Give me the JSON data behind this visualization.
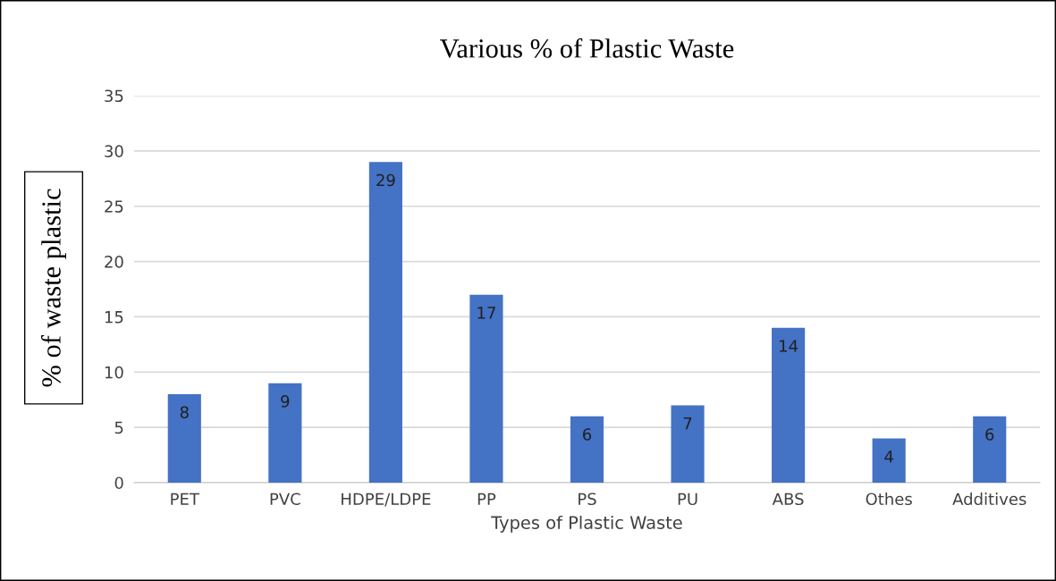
{
  "chart_data": {
    "type": "bar",
    "title": "Various % of Plastic Waste",
    "xlabel": "Types of Plastic Waste",
    "ylabel": "% of waste plastic",
    "categories": [
      "PET",
      "PVC",
      "HDPE/LDPE",
      "PP",
      "PS",
      "PU",
      "ABS",
      "Othes",
      "Additives"
    ],
    "values": [
      8,
      9,
      29,
      17,
      6,
      7,
      14,
      4,
      6
    ],
    "color": "#4472c4",
    "ylim": [
      0,
      35
    ],
    "yticks": [
      0,
      5,
      10,
      15,
      20,
      25,
      30,
      35
    ],
    "grid": "y",
    "data_labels": true
  }
}
